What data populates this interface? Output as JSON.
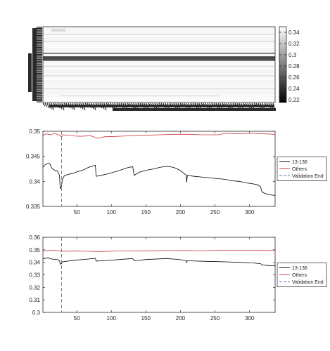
{
  "colors": {
    "series_13_136": "#000000",
    "series_others": "#c8323c",
    "validation_end": "#5b6bd6",
    "axis": "#262626"
  },
  "chart_data": [
    {
      "type": "heatmap",
      "colormap": "gray",
      "colorbar": {
        "ticks": [
          0.34,
          0.32,
          0.3,
          0.28,
          0.26,
          0.24,
          0.22
        ],
        "labels": [
          "0.34",
          "0.32",
          "0.3",
          "0.28",
          "0.26",
          "0.24",
          "0.22"
        ],
        "range": [
          0.215,
          0.35
        ]
      },
      "rows": 64,
      "cols": 337,
      "band_values": {
        "dark_rows": [
          22,
          25,
          26,
          27,
          28
        ],
        "faint_rows": [
          6,
          12,
          33,
          41,
          52
        ]
      }
    },
    {
      "type": "line",
      "xlim": [
        1,
        337
      ],
      "ylim": [
        0.335,
        0.35
      ],
      "xticks": [
        50,
        100,
        150,
        200,
        250,
        300
      ],
      "yticks": [
        0.335,
        0.34,
        0.345,
        0.35
      ],
      "ytick_labels": [
        "0.335",
        "0.34",
        "0.345",
        "0.35"
      ],
      "grid": false,
      "legend_position": "outside-right",
      "validation_end_x": 28,
      "series": [
        {
          "name": "13-136",
          "style": "solid",
          "points": [
            [
              1,
              0.3428
            ],
            [
              4,
              0.3433
            ],
            [
              8,
              0.3436
            ],
            [
              11,
              0.3435
            ],
            [
              14,
              0.3426
            ],
            [
              18,
              0.3422
            ],
            [
              22,
              0.3421
            ],
            [
              25,
              0.3412
            ],
            [
              26,
              0.3385
            ],
            [
              27,
              0.3388
            ],
            [
              28,
              0.339
            ],
            [
              29,
              0.3403
            ],
            [
              32,
              0.3411
            ],
            [
              38,
              0.3414
            ],
            [
              45,
              0.3416
            ],
            [
              52,
              0.342
            ],
            [
              60,
              0.3423
            ],
            [
              67,
              0.3428
            ],
            [
              72,
              0.343
            ],
            [
              77,
              0.3432
            ],
            [
              78,
              0.341
            ],
            [
              85,
              0.3412
            ],
            [
              95,
              0.3415
            ],
            [
              110,
              0.3421
            ],
            [
              125,
              0.3428
            ],
            [
              131,
              0.3429
            ],
            [
              133,
              0.3412
            ],
            [
              140,
              0.3418
            ],
            [
              150,
              0.3422
            ],
            [
              162,
              0.3425
            ],
            [
              170,
              0.3428
            ],
            [
              180,
              0.343
            ],
            [
              190,
              0.3428
            ],
            [
              198,
              0.3423
            ],
            [
              205,
              0.3416
            ],
            [
              208,
              0.3413
            ],
            [
              209,
              0.3398
            ],
            [
              210,
              0.3412
            ],
            [
              220,
              0.341
            ],
            [
              235,
              0.3408
            ],
            [
              250,
              0.3406
            ],
            [
              265,
              0.3404
            ],
            [
              275,
              0.3401
            ],
            [
              285,
              0.34
            ],
            [
              295,
              0.3397
            ],
            [
              305,
              0.3395
            ],
            [
              312,
              0.3393
            ],
            [
              316,
              0.3389
            ],
            [
              318,
              0.3379
            ],
            [
              322,
              0.3376
            ],
            [
              330,
              0.3373
            ],
            [
              337,
              0.3372
            ]
          ]
        },
        {
          "name": "Others",
          "style": "solid",
          "points": [
            [
              1,
              0.3492
            ],
            [
              6,
              0.3495
            ],
            [
              12,
              0.3493
            ],
            [
              18,
              0.3496
            ],
            [
              25,
              0.3492
            ],
            [
              28,
              0.3489
            ],
            [
              31,
              0.3493
            ],
            [
              40,
              0.3491
            ],
            [
              55,
              0.349
            ],
            [
              70,
              0.3491
            ],
            [
              80,
              0.3486
            ],
            [
              90,
              0.3489
            ],
            [
              110,
              0.349
            ],
            [
              130,
              0.3491
            ],
            [
              150,
              0.3492
            ],
            [
              170,
              0.3493
            ],
            [
              190,
              0.3494
            ],
            [
              210,
              0.3494
            ],
            [
              230,
              0.3493
            ],
            [
              255,
              0.3493
            ],
            [
              265,
              0.3496
            ],
            [
              280,
              0.3495
            ],
            [
              300,
              0.3496
            ],
            [
              320,
              0.3495
            ],
            [
              337,
              0.3494
            ]
          ]
        },
        {
          "name": "Validation End",
          "style": "dashed"
        }
      ]
    },
    {
      "type": "line",
      "xlim": [
        1,
        337
      ],
      "ylim": [
        0.3,
        0.36
      ],
      "xticks": [
        50,
        100,
        150,
        200,
        250,
        300
      ],
      "yticks": [
        0.3,
        0.31,
        0.32,
        0.33,
        0.34,
        0.35,
        0.36
      ],
      "ytick_labels": [
        "0.3",
        "0.31",
        "0.32",
        "0.33",
        "0.34",
        "0.35",
        "0.36"
      ],
      "grid": false,
      "legend_position": "outside-right",
      "validation_end_x": 28,
      "series": [
        {
          "name": "13-136",
          "style": "solid",
          "points": [
            [
              1,
              0.3428
            ],
            [
              8,
              0.3436
            ],
            [
              14,
              0.3426
            ],
            [
              22,
              0.3421
            ],
            [
              25,
              0.3412
            ],
            [
              26,
              0.3385
            ],
            [
              28,
              0.339
            ],
            [
              29,
              0.3403
            ],
            [
              45,
              0.3416
            ],
            [
              60,
              0.3423
            ],
            [
              77,
              0.3432
            ],
            [
              78,
              0.341
            ],
            [
              95,
              0.3415
            ],
            [
              125,
              0.3428
            ],
            [
              131,
              0.3429
            ],
            [
              133,
              0.3412
            ],
            [
              150,
              0.3422
            ],
            [
              180,
              0.343
            ],
            [
              198,
              0.3423
            ],
            [
              208,
              0.3413
            ],
            [
              209,
              0.3398
            ],
            [
              210,
              0.3412
            ],
            [
              235,
              0.3408
            ],
            [
              265,
              0.3404
            ],
            [
              285,
              0.34
            ],
            [
              305,
              0.3395
            ],
            [
              316,
              0.3389
            ],
            [
              318,
              0.3379
            ],
            [
              330,
              0.3373
            ],
            [
              337,
              0.3372
            ]
          ]
        },
        {
          "name": "Others",
          "style": "solid",
          "points": [
            [
              1,
              0.3492
            ],
            [
              18,
              0.3496
            ],
            [
              28,
              0.3489
            ],
            [
              55,
              0.349
            ],
            [
              80,
              0.3486
            ],
            [
              110,
              0.349
            ],
            [
              150,
              0.3492
            ],
            [
              190,
              0.3494
            ],
            [
              230,
              0.3493
            ],
            [
              265,
              0.3496
            ],
            [
              300,
              0.3496
            ],
            [
              337,
              0.3494
            ]
          ]
        },
        {
          "name": "Validation End",
          "style": "dashed"
        }
      ]
    }
  ]
}
